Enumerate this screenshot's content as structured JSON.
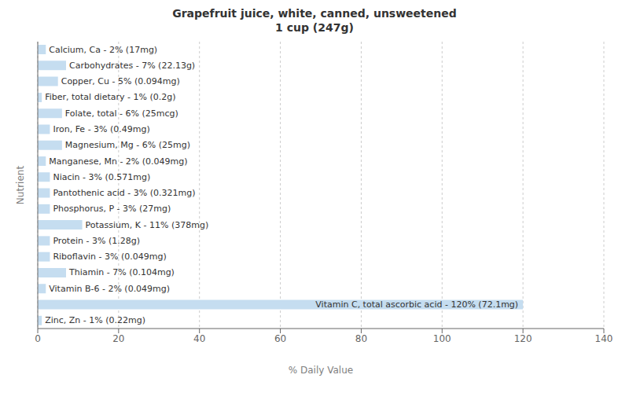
{
  "chart_data": {
    "type": "bar",
    "title": "Grapefruit juice, white, canned, unsweetened\n1 cup (247g)",
    "xlabel": "% Daily Value",
    "ylabel": "Nutrient",
    "orientation": "horizontal",
    "categories": [
      "Calcium, Ca - 2% (17mg)",
      "Carbohydrates - 7% (22.13g)",
      "Copper, Cu - 5% (0.094mg)",
      "Fiber, total dietary - 1% (0.2g)",
      "Folate, total - 6% (25mcg)",
      "Iron, Fe - 3% (0.49mg)",
      "Magnesium, Mg - 6% (25mg)",
      "Manganese, Mn - 2% (0.049mg)",
      "Niacin - 3% (0.571mg)",
      "Pantothenic acid - 3% (0.321mg)",
      "Phosphorus, P - 3% (27mg)",
      "Potassium, K - 11% (378mg)",
      "Protein - 3% (1.28g)",
      "Riboflavin - 3% (0.049mg)",
      "Thiamin - 7% (0.104mg)",
      "Vitamin B-6 - 2% (0.049mg)",
      "Vitamin C, total ascorbic acid - 120% (72.1mg)",
      "Zinc, Zn - 1% (0.22mg)"
    ],
    "values": [
      2,
      7,
      5,
      1,
      6,
      3,
      6,
      2,
      3,
      3,
      3,
      11,
      3,
      3,
      7,
      2,
      120,
      1
    ],
    "color": "#c5ddf0",
    "xlim": [
      0,
      140
    ],
    "xticks": [
      0,
      20,
      40,
      60,
      80,
      100,
      120,
      140
    ],
    "grid": true,
    "tick_labels": "x"
  }
}
